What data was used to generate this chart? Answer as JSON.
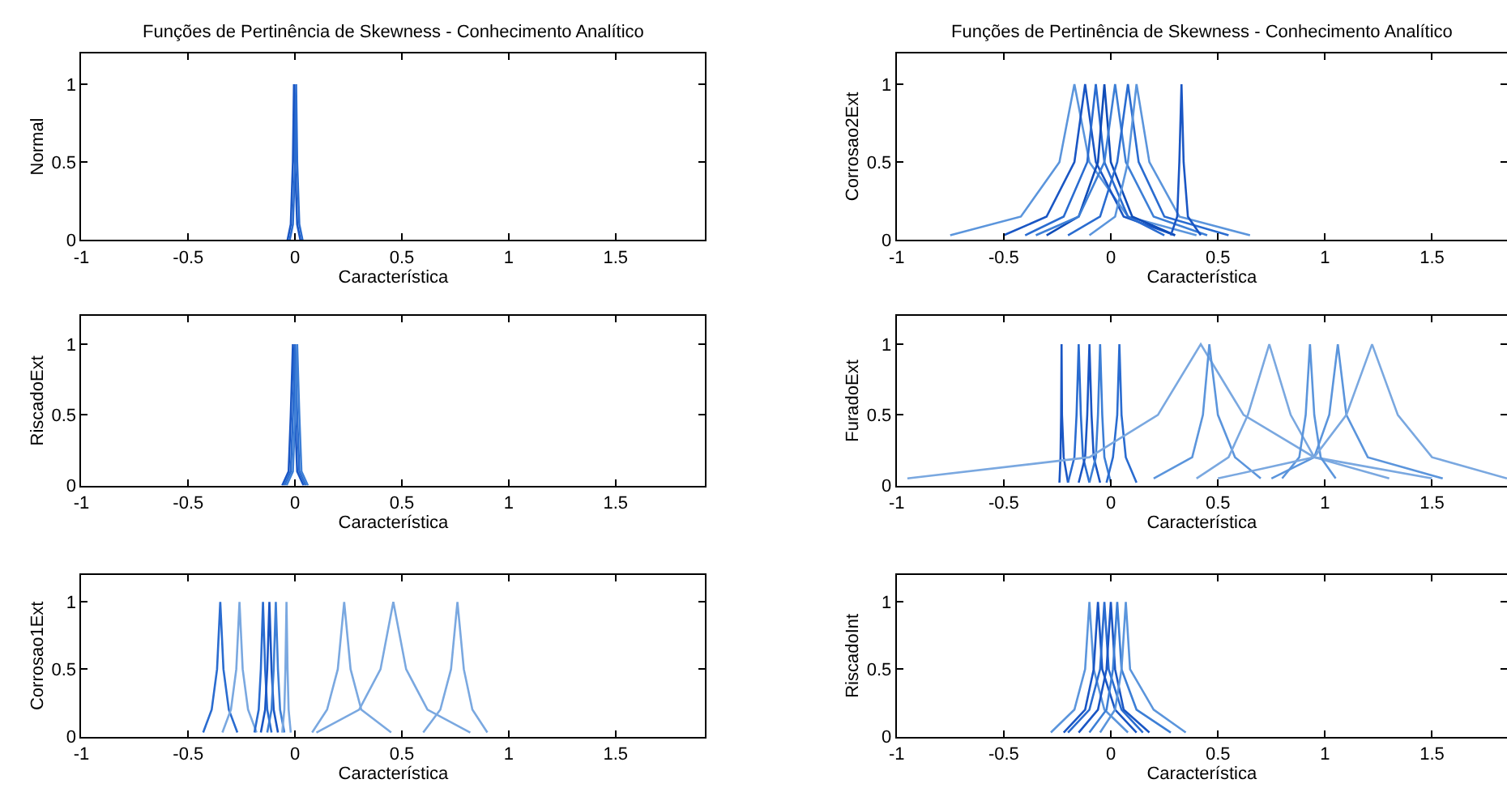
{
  "chart_data": [
    {
      "type": "line",
      "title": "Funções de Pertinência de Skewness - Conhecimento Analítico",
      "xlabel": "Característica",
      "ylabel": "Normal",
      "xlim": [
        -1,
        1.92
      ],
      "ylim": [
        0,
        1.2
      ],
      "xticks": [
        -1,
        -0.5,
        0,
        0.5,
        1,
        1.5
      ],
      "yticks": [
        0,
        0.5,
        1
      ],
      "marker": "none",
      "line_style": "solid",
      "series": [
        {
          "color": "#1a56c4",
          "x": [
            -0.035,
            -0.02,
            -0.01,
            -0.005,
            0.0,
            0.01,
            0.025
          ],
          "values": [
            0,
            0.1,
            0.5,
            1,
            0.5,
            0.1,
            0
          ]
        },
        {
          "color": "#2a6cd0",
          "x": [
            -0.025,
            -0.01,
            0.0,
            0.005,
            0.01,
            0.02,
            0.035
          ],
          "values": [
            0,
            0.1,
            0.5,
            1,
            0.5,
            0.1,
            0
          ]
        }
      ]
    },
    {
      "type": "line",
      "title": "Funções de Pertinência de Skewness - Conhecimento Analítico",
      "xlabel": "Característica",
      "ylabel": "Corrosao2Ext",
      "xlim": [
        -1,
        1.85
      ],
      "ylim": [
        0,
        1.2
      ],
      "xticks": [
        -1,
        -0.5,
        0,
        0.5,
        1,
        1.5
      ],
      "yticks": [
        0,
        0.5,
        1
      ],
      "marker": "none",
      "line_style": "solid",
      "series": [
        {
          "color": "#5b95dc",
          "x": [
            -0.75,
            -0.42,
            -0.24,
            -0.17,
            -0.1,
            0.08,
            0.4
          ],
          "values": [
            0.03,
            0.15,
            0.5,
            1,
            0.5,
            0.15,
            0.03
          ]
        },
        {
          "color": "#1a56c4",
          "x": [
            -0.5,
            -0.3,
            -0.17,
            -0.12,
            -0.07,
            0.06,
            0.3
          ],
          "values": [
            0.03,
            0.15,
            0.5,
            1,
            0.5,
            0.15,
            0.03
          ]
        },
        {
          "color": "#2a6cd0",
          "x": [
            -0.4,
            -0.22,
            -0.11,
            -0.07,
            -0.03,
            0.08,
            0.25
          ],
          "values": [
            0.03,
            0.15,
            0.5,
            1,
            0.5,
            0.15,
            0.03
          ]
        },
        {
          "color": "#0f4cb8",
          "x": [
            -0.3,
            -0.15,
            -0.06,
            -0.03,
            0.0,
            0.1,
            0.3
          ],
          "values": [
            0.03,
            0.15,
            0.5,
            1,
            0.5,
            0.15,
            0.03
          ]
        },
        {
          "color": "#3d7fd6",
          "x": [
            -0.35,
            -0.15,
            -0.03,
            0.02,
            0.07,
            0.2,
            0.45
          ],
          "values": [
            0.03,
            0.15,
            0.5,
            1,
            0.5,
            0.15,
            0.03
          ]
        },
        {
          "color": "#2a6cd0",
          "x": [
            -0.2,
            -0.05,
            0.03,
            0.08,
            0.13,
            0.25,
            0.55
          ],
          "values": [
            0.03,
            0.15,
            0.5,
            1,
            0.5,
            0.15,
            0.03
          ]
        },
        {
          "color": "#5b95dc",
          "x": [
            -0.1,
            0.02,
            0.08,
            0.12,
            0.18,
            0.32,
            0.65
          ],
          "values": [
            0.03,
            0.15,
            0.5,
            1,
            0.5,
            0.15,
            0.03
          ]
        },
        {
          "color": "#1a56c4",
          "x": [
            0.28,
            0.31,
            0.32,
            0.33,
            0.34,
            0.36,
            0.42
          ],
          "values": [
            0.03,
            0.15,
            0.5,
            1,
            0.5,
            0.15,
            0.03
          ]
        }
      ]
    },
    {
      "type": "line",
      "xlabel": "Característica",
      "ylabel": "RiscadoExt",
      "xlim": [
        -1,
        1.92
      ],
      "ylim": [
        0,
        1.2
      ],
      "xticks": [
        -1,
        -0.5,
        0,
        0.5,
        1,
        1.5
      ],
      "yticks": [
        0,
        0.5,
        1
      ],
      "marker": "none",
      "line_style": "solid",
      "series": [
        {
          "color": "#1a56c4",
          "x": [
            -0.06,
            -0.03,
            -0.02,
            -0.01,
            0.0,
            0.01,
            0.04
          ],
          "values": [
            0,
            0.1,
            0.5,
            1,
            0.5,
            0.1,
            0
          ]
        },
        {
          "color": "#2a6cd0",
          "x": [
            -0.05,
            -0.02,
            -0.01,
            0.0,
            0.01,
            0.02,
            0.05
          ],
          "values": [
            0,
            0.1,
            0.5,
            1,
            0.5,
            0.1,
            0
          ]
        },
        {
          "color": "#3d7fd6",
          "x": [
            -0.04,
            -0.01,
            0.0,
            0.01,
            0.02,
            0.03,
            0.06
          ],
          "values": [
            0,
            0.1,
            0.5,
            1,
            0.5,
            0.1,
            0
          ]
        }
      ]
    },
    {
      "type": "line",
      "xlabel": "Característica",
      "ylabel": "FuradoExt",
      "xlim": [
        -1,
        1.85
      ],
      "ylim": [
        0,
        1.2
      ],
      "xticks": [
        -1,
        -0.5,
        0,
        0.5,
        1,
        1.5
      ],
      "yticks": [
        0,
        0.5,
        1
      ],
      "marker": "none",
      "line_style": "solid",
      "series": [
        {
          "color": "#1a56c4",
          "x": [
            -0.24,
            -0.235,
            -0.232,
            -0.23,
            -0.228,
            -0.22,
            -0.2
          ],
          "values": [
            0.02,
            0.2,
            0.5,
            1,
            0.5,
            0.2,
            0.02
          ]
        },
        {
          "color": "#2a6cd0",
          "x": [
            -0.2,
            -0.17,
            -0.16,
            -0.15,
            -0.14,
            -0.13,
            -0.1
          ],
          "values": [
            0.02,
            0.2,
            0.5,
            1,
            0.5,
            0.2,
            0.02
          ]
        },
        {
          "color": "#1a56c4",
          "x": [
            -0.15,
            -0.12,
            -0.11,
            -0.1,
            -0.09,
            -0.08,
            -0.05
          ],
          "values": [
            0.02,
            0.2,
            0.5,
            1,
            0.5,
            0.2,
            0.02
          ]
        },
        {
          "color": "#3d7fd6",
          "x": [
            -0.1,
            -0.07,
            -0.06,
            -0.05,
            -0.04,
            -0.03,
            0.0
          ],
          "values": [
            0.02,
            0.2,
            0.5,
            1,
            0.5,
            0.2,
            0.02
          ]
        },
        {
          "color": "#2a6cd0",
          "x": [
            -0.02,
            0.01,
            0.03,
            0.04,
            0.05,
            0.07,
            0.12
          ],
          "values": [
            0.02,
            0.2,
            0.5,
            1,
            0.5,
            0.2,
            0.02
          ]
        },
        {
          "color": "#7aa8e0",
          "x": [
            -0.95,
            -0.1,
            0.22,
            0.42,
            0.62,
            0.95,
            1.5
          ],
          "values": [
            0.05,
            0.2,
            0.5,
            1,
            0.5,
            0.2,
            0.05
          ]
        },
        {
          "color": "#5b95dc",
          "x": [
            0.2,
            0.38,
            0.43,
            0.46,
            0.5,
            0.58,
            0.7
          ],
          "values": [
            0.05,
            0.2,
            0.5,
            1,
            0.5,
            0.2,
            0.05
          ]
        },
        {
          "color": "#7aa8e0",
          "x": [
            0.4,
            0.55,
            0.64,
            0.74,
            0.84,
            0.95,
            1.3
          ],
          "values": [
            0.05,
            0.2,
            0.5,
            1,
            0.5,
            0.2,
            0.05
          ]
        },
        {
          "color": "#5b95dc",
          "x": [
            0.8,
            0.88,
            0.91,
            0.93,
            0.95,
            0.98,
            1.05
          ],
          "values": [
            0.05,
            0.2,
            0.5,
            1,
            0.5,
            0.2,
            0.05
          ]
        },
        {
          "color": "#5b95dc",
          "x": [
            0.75,
            0.95,
            1.02,
            1.06,
            1.1,
            1.2,
            1.55
          ],
          "values": [
            0.05,
            0.2,
            0.5,
            1,
            0.5,
            0.2,
            0.05
          ]
        },
        {
          "color": "#7aa8e0",
          "x": [
            0.5,
            0.95,
            1.1,
            1.22,
            1.34,
            1.5,
            1.85
          ],
          "values": [
            0.05,
            0.2,
            0.5,
            1,
            0.5,
            0.2,
            0.05
          ]
        }
      ]
    },
    {
      "type": "line",
      "xlabel": "Característica",
      "ylabel": "Corrosao1Ext",
      "xlim": [
        -1,
        1.92
      ],
      "ylim": [
        0,
        1.2
      ],
      "xticks": [
        -1,
        -0.5,
        0,
        0.5,
        1,
        1.5
      ],
      "yticks": [
        0,
        0.5,
        1
      ],
      "marker": "none",
      "line_style": "solid",
      "series": [
        {
          "color": "#2a6cd0",
          "x": [
            -0.43,
            -0.39,
            -0.365,
            -0.35,
            -0.335,
            -0.31,
            -0.27
          ],
          "values": [
            0.03,
            0.2,
            0.5,
            1,
            0.5,
            0.2,
            0.03
          ]
        },
        {
          "color": "#7aa8e0",
          "x": [
            -0.34,
            -0.3,
            -0.275,
            -0.26,
            -0.245,
            -0.22,
            -0.18
          ],
          "values": [
            0.03,
            0.2,
            0.5,
            1,
            0.5,
            0.2,
            0.03
          ]
        },
        {
          "color": "#2a6cd0",
          "x": [
            -0.19,
            -0.17,
            -0.16,
            -0.15,
            -0.14,
            -0.13,
            -0.11
          ],
          "values": [
            0.03,
            0.2,
            0.5,
            1,
            0.5,
            0.2,
            0.03
          ]
        },
        {
          "color": "#1a56c4",
          "x": [
            -0.16,
            -0.14,
            -0.13,
            -0.12,
            -0.11,
            -0.1,
            -0.08
          ],
          "values": [
            0.03,
            0.2,
            0.5,
            1,
            0.5,
            0.2,
            0.03
          ]
        },
        {
          "color": "#3d7fd6",
          "x": [
            -0.13,
            -0.11,
            -0.1,
            -0.09,
            -0.08,
            -0.07,
            -0.05
          ],
          "values": [
            0.03,
            0.2,
            0.5,
            1,
            0.5,
            0.2,
            0.03
          ]
        },
        {
          "color": "#7aa8e0",
          "x": [
            -0.06,
            -0.05,
            -0.045,
            -0.04,
            -0.035,
            -0.03,
            -0.02
          ],
          "values": [
            0.03,
            0.2,
            0.5,
            1,
            0.5,
            0.2,
            0.03
          ]
        },
        {
          "color": "#7aa8e0",
          "x": [
            0.08,
            0.15,
            0.2,
            0.23,
            0.26,
            0.31,
            0.45
          ],
          "values": [
            0.03,
            0.2,
            0.5,
            1,
            0.5,
            0.2,
            0.03
          ]
        },
        {
          "color": "#7aa8e0",
          "x": [
            0.1,
            0.3,
            0.4,
            0.46,
            0.52,
            0.62,
            0.82
          ],
          "values": [
            0.03,
            0.2,
            0.5,
            1,
            0.5,
            0.2,
            0.03
          ]
        },
        {
          "color": "#7aa8e0",
          "x": [
            0.6,
            0.68,
            0.73,
            0.76,
            0.79,
            0.83,
            0.9
          ],
          "values": [
            0.03,
            0.2,
            0.5,
            1,
            0.5,
            0.2,
            0.03
          ]
        }
      ]
    },
    {
      "type": "line",
      "xlabel": "Característica",
      "ylabel": "RiscadoInt",
      "xlim": [
        -1,
        1.85
      ],
      "ylim": [
        0,
        1.2
      ],
      "xticks": [
        -1,
        -0.5,
        0,
        0.5,
        1,
        1.5
      ],
      "yticks": [
        0,
        0.5,
        1
      ],
      "marker": "none",
      "line_style": "solid",
      "series": [
        {
          "color": "#5b95dc",
          "x": [
            -0.28,
            -0.17,
            -0.12,
            -0.1,
            -0.08,
            -0.03,
            0.08
          ],
          "values": [
            0.03,
            0.2,
            0.5,
            1,
            0.5,
            0.2,
            0.03
          ]
        },
        {
          "color": "#1a56c4",
          "x": [
            -0.22,
            -0.12,
            -0.08,
            -0.06,
            -0.04,
            0.02,
            0.12
          ],
          "values": [
            0.03,
            0.2,
            0.5,
            1,
            0.5,
            0.2,
            0.03
          ]
        },
        {
          "color": "#2a6cd0",
          "x": [
            -0.2,
            -0.1,
            -0.05,
            -0.03,
            -0.01,
            0.05,
            0.15
          ],
          "values": [
            0.03,
            0.2,
            0.5,
            1,
            0.5,
            0.2,
            0.03
          ]
        },
        {
          "color": "#1a56c4",
          "x": [
            -0.15,
            -0.06,
            -0.02,
            0.0,
            0.02,
            0.06,
            0.18
          ],
          "values": [
            0.03,
            0.2,
            0.5,
            1,
            0.5,
            0.2,
            0.03
          ]
        },
        {
          "color": "#3d7fd6",
          "x": [
            -0.1,
            -0.02,
            0.01,
            0.03,
            0.05,
            0.12,
            0.28
          ],
          "values": [
            0.03,
            0.2,
            0.5,
            1,
            0.5,
            0.2,
            0.03
          ]
        },
        {
          "color": "#5b95dc",
          "x": [
            -0.05,
            0.02,
            0.05,
            0.07,
            0.09,
            0.2,
            0.35
          ],
          "values": [
            0.03,
            0.2,
            0.5,
            1,
            0.5,
            0.2,
            0.03
          ]
        }
      ]
    }
  ]
}
